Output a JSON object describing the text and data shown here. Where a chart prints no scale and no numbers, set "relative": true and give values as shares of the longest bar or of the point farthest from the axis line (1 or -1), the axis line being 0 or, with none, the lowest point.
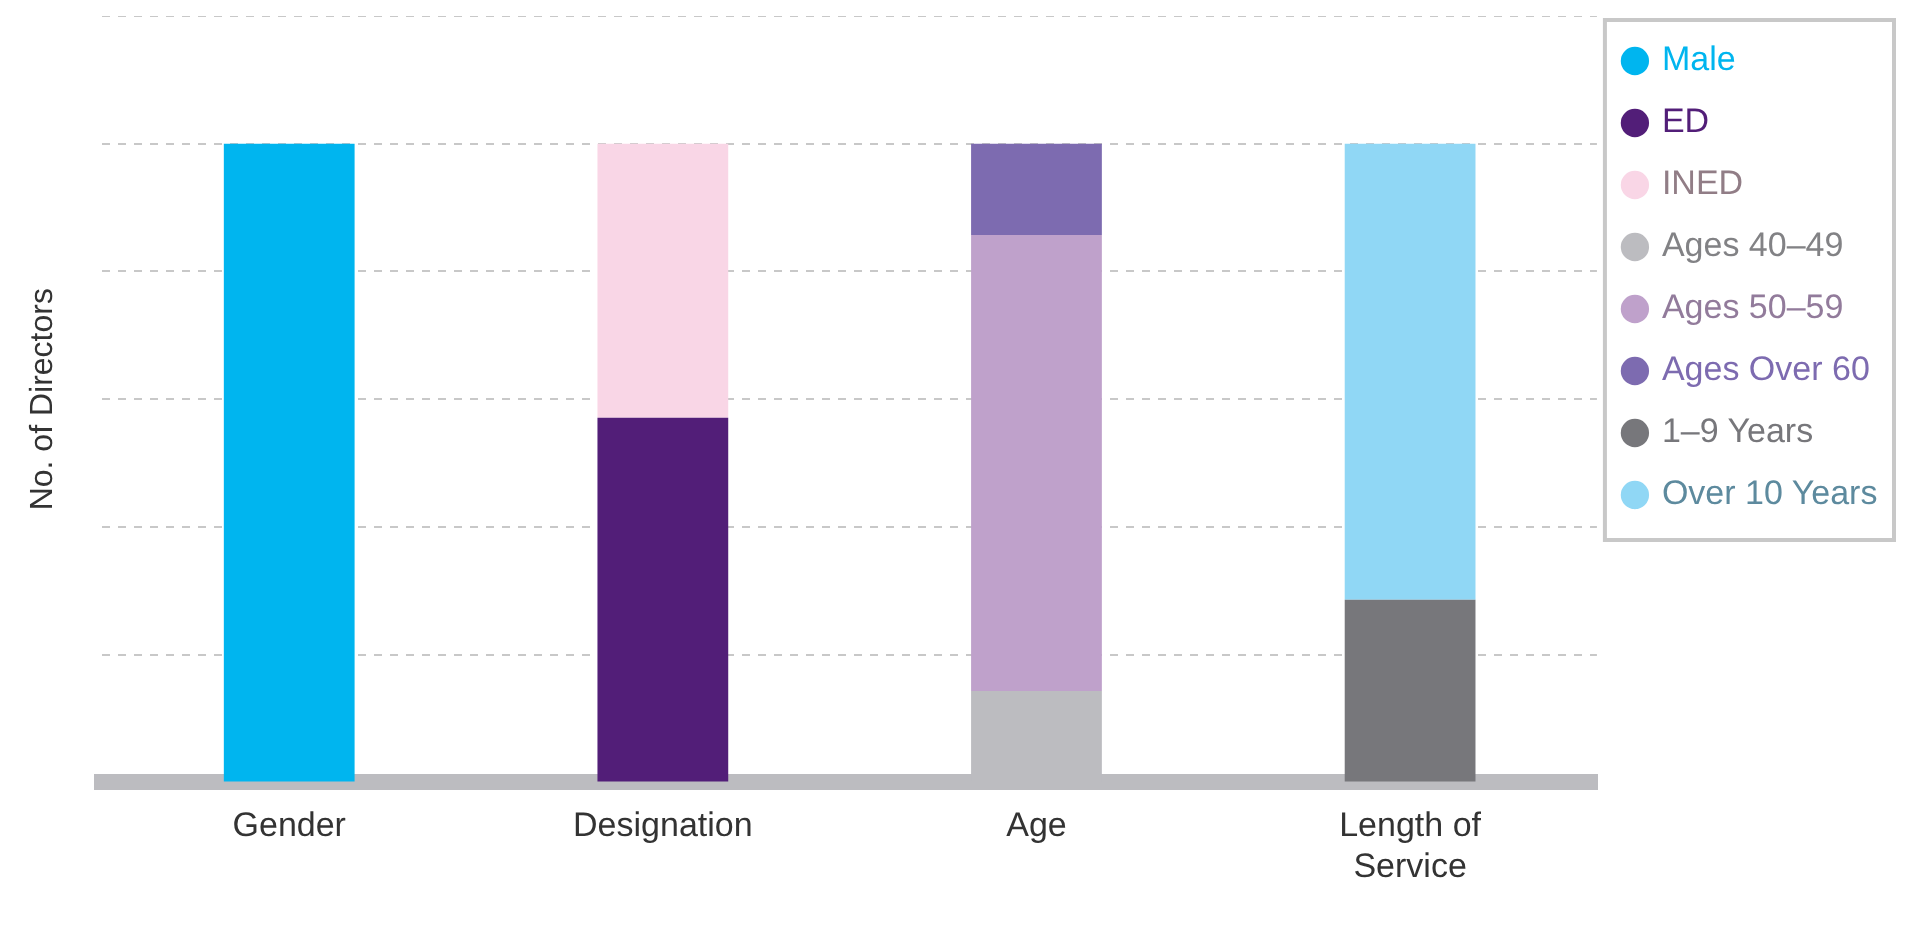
{
  "chart_data": {
    "type": "bar",
    "stacked": true,
    "relative": true,
    "ylabel": "No. of Directors",
    "categories": [
      "Gender",
      "Designation",
      "Age",
      "Length of Service"
    ],
    "series": [
      {
        "name": "Male",
        "color": "#00b5ef",
        "values": [
          1,
          null,
          null,
          null
        ]
      },
      {
        "name": "ED",
        "color": "#521e78",
        "values": [
          null,
          0.571,
          null,
          null
        ]
      },
      {
        "name": "INED",
        "color": "#f9d6e6",
        "values": [
          null,
          0.429,
          null,
          null
        ]
      },
      {
        "name": "Ages 40–49",
        "color": "#bcbcc0",
        "values": [
          null,
          null,
          0.143,
          null
        ]
      },
      {
        "name": "Ages 50–59",
        "color": "#bfa1cb",
        "values": [
          null,
          null,
          0.714,
          null
        ]
      },
      {
        "name": "Ages Over 60",
        "color": "#7d6bb0",
        "values": [
          null,
          null,
          0.143,
          null
        ]
      },
      {
        "name": "1–9 Years",
        "color": "#77777b",
        "values": [
          null,
          null,
          null,
          0.286
        ]
      },
      {
        "name": "Over 10 Years",
        "color": "#90d7f5",
        "values": [
          null,
          null,
          null,
          0.714
        ]
      }
    ],
    "grid": "y",
    "legend": "right"
  }
}
